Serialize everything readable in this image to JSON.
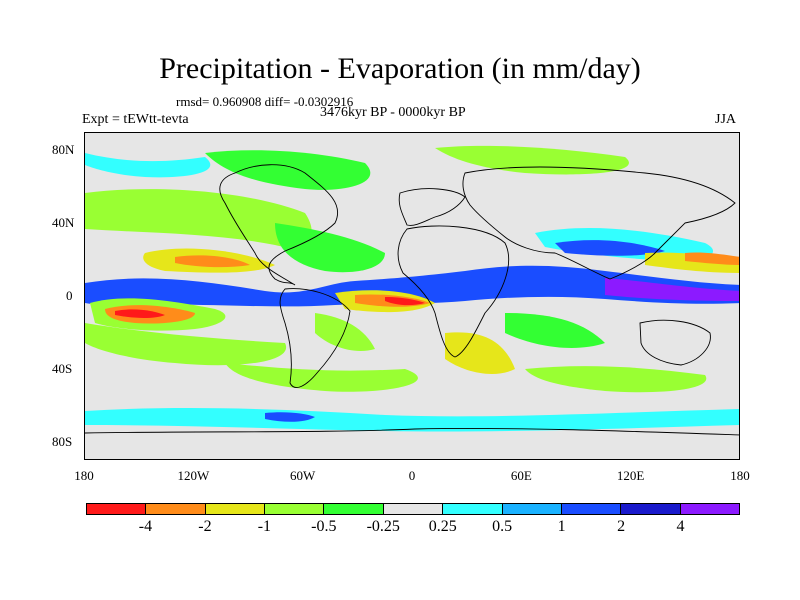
{
  "title": "Precipitation - Evaporation (in mm/day)",
  "stats": "rmsd= 0.960908 diff= -0.0302916",
  "expt": "Expt = tEWtt-tevta",
  "period": "3476kyr BP - 0000kyr BP",
  "season": "JJA",
  "y_axis": {
    "labels": [
      "80N",
      "40N",
      "0",
      "40S",
      "80S"
    ]
  },
  "x_axis": {
    "labels": [
      "180",
      "120W",
      "60W",
      "0",
      "60E",
      "120E",
      "180"
    ]
  },
  "colorbar": {
    "labels": [
      "-4",
      "-2",
      "-1",
      "-0.5",
      "-0.25",
      "0.25",
      "0.5",
      "1",
      "2",
      "4"
    ],
    "colors": [
      "#ff1a1a",
      "#ff8c1a",
      "#e6e61a",
      "#99ff33",
      "#33ff33",
      "#e6e6e6",
      "#33ffff",
      "#1ab2ff",
      "#1a4dff",
      "#1a1acc",
      "#8c1aff"
    ]
  },
  "chart_data": {
    "type": "heatmap",
    "title": "Precipitation - Evaporation (in mm/day)",
    "x_range": [
      -180,
      180
    ],
    "y_range": [
      -90,
      90
    ],
    "levels": [
      -4,
      -2,
      -1,
      -0.5,
      -0.25,
      0.25,
      0.5,
      1,
      2,
      4
    ]
  }
}
